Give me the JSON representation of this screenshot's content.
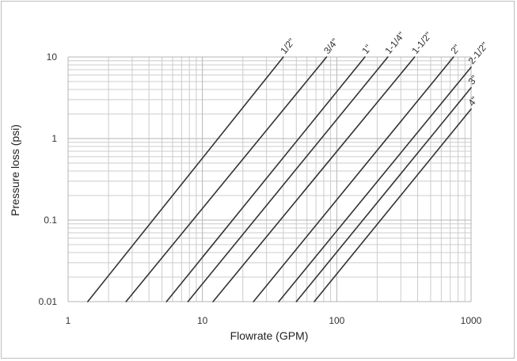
{
  "chart_data": {
    "type": "line",
    "xlabel": "Flowrate (GPM)",
    "ylabel": "Pressure loss (psi)",
    "x_scale": "log",
    "y_scale": "log",
    "xlim": [
      1,
      1000
    ],
    "ylim": [
      0.01,
      10
    ],
    "x_ticks": [
      "1",
      "10",
      "100",
      "1000"
    ],
    "y_ticks": [
      "0.01",
      "0.1",
      "1",
      "10"
    ],
    "grid": true,
    "line_color": "#333333",
    "grid_color": "#cccccc",
    "series": [
      {
        "name": "1/2\"",
        "x": [
          1.4,
          40
        ],
        "y": [
          0.01,
          10
        ]
      },
      {
        "name": "3/4\"",
        "x": [
          2.7,
          84
        ],
        "y": [
          0.01,
          10
        ]
      },
      {
        "name": "1\"",
        "x": [
          5.4,
          162
        ],
        "y": [
          0.01,
          10
        ]
      },
      {
        "name": "1-1/4\"",
        "x": [
          7.8,
          240
        ],
        "y": [
          0.01,
          10
        ]
      },
      {
        "name": "1-1/2\"",
        "x": [
          12,
          380
        ],
        "y": [
          0.01,
          10
        ]
      },
      {
        "name": "2\"",
        "x": [
          24,
          740
        ],
        "y": [
          0.01,
          10
        ]
      },
      {
        "name": "2-1/2\"",
        "x": [
          37,
          1000
        ],
        "y": [
          0.01,
          7.5
        ]
      },
      {
        "name": "3\"",
        "x": [
          50,
          1000
        ],
        "y": [
          0.01,
          4.2
        ]
      },
      {
        "name": "4\"",
        "x": [
          68,
          1000
        ],
        "y": [
          0.01,
          2.3
        ]
      }
    ]
  }
}
